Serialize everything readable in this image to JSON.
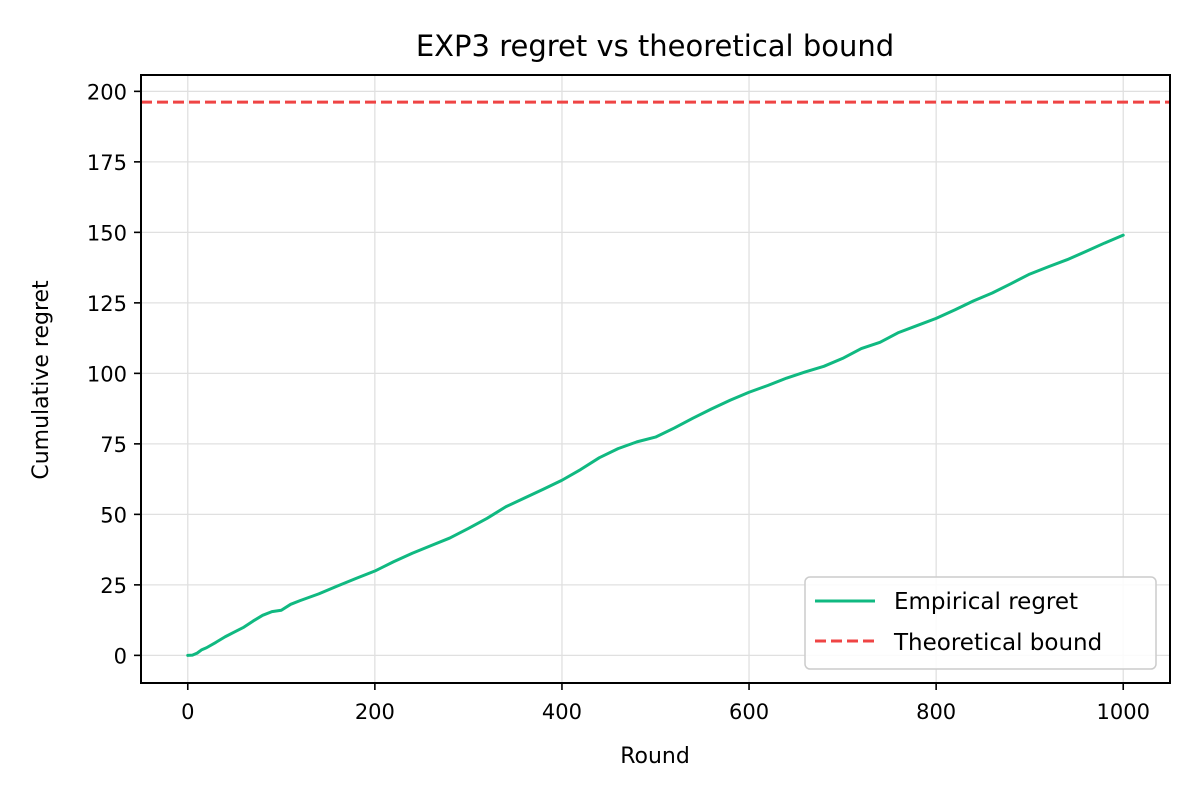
{
  "chart_data": {
    "type": "line",
    "title": "EXP3 regret vs theoretical bound",
    "xlabel": "Round",
    "ylabel": "Cumulative regret",
    "xlim": [
      -50,
      1050
    ],
    "ylim": [
      -9.8,
      205.8
    ],
    "x_ticks": [
      0,
      200,
      400,
      600,
      800,
      1000
    ],
    "y_ticks": [
      0,
      25,
      50,
      75,
      100,
      125,
      150,
      175,
      200
    ],
    "x_tick_labels": [
      "0",
      "200",
      "400",
      "600",
      "800",
      "1000"
    ],
    "y_tick_labels": [
      "0",
      "25",
      "50",
      "75",
      "100",
      "125",
      "150",
      "175",
      "200"
    ],
    "grid": true,
    "legend_position": "lower-right",
    "series": [
      {
        "name": "Empirical regret",
        "color": "#10b981",
        "style": "solid",
        "x": [
          0,
          5,
          10,
          15,
          20,
          30,
          40,
          50,
          60,
          70,
          80,
          90,
          100,
          110,
          120,
          140,
          160,
          180,
          200,
          220,
          240,
          260,
          280,
          300,
          320,
          340,
          360,
          380,
          400,
          420,
          440,
          460,
          480,
          500,
          520,
          540,
          560,
          580,
          600,
          620,
          640,
          660,
          680,
          700,
          720,
          740,
          760,
          780,
          800,
          820,
          840,
          860,
          880,
          900,
          920,
          940,
          960,
          980,
          1000
        ],
        "y": [
          0,
          0.1,
          0.8,
          2.0,
          2.7,
          4.6,
          6.6,
          8.3,
          10.0,
          12.2,
          14.2,
          15.5,
          16.0,
          18.1,
          19.4,
          21.8,
          24.6,
          27.3,
          29.9,
          33.2,
          36.2,
          38.9,
          41.6,
          45.0,
          48.6,
          52.7,
          55.8,
          58.9,
          62.1,
          65.9,
          70.1,
          73.3,
          75.7,
          77.4,
          80.6,
          84.1,
          87.4,
          90.5,
          93.3,
          95.7,
          98.3,
          100.5,
          102.5,
          105.3,
          108.8,
          111.0,
          114.5,
          117.0,
          119.5,
          122.5,
          125.7,
          128.5,
          131.8,
          135.2,
          137.8,
          140.3,
          143.2,
          146.2,
          149.0
        ]
      },
      {
        "name": "Theoretical bound",
        "color": "#ef4444",
        "style": "dashed",
        "constant": 196.2
      }
    ]
  }
}
